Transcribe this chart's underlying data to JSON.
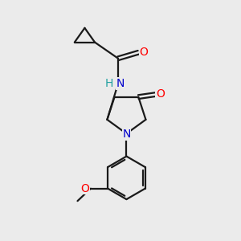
{
  "background_color": "#ebebeb",
  "bond_color": "#1a1a1a",
  "atom_colors": {
    "O": "#ff0000",
    "N": "#0000cc",
    "H": "#20a0a0",
    "C": "#1a1a1a"
  },
  "figsize": [
    3.0,
    3.0
  ],
  "dpi": 100
}
